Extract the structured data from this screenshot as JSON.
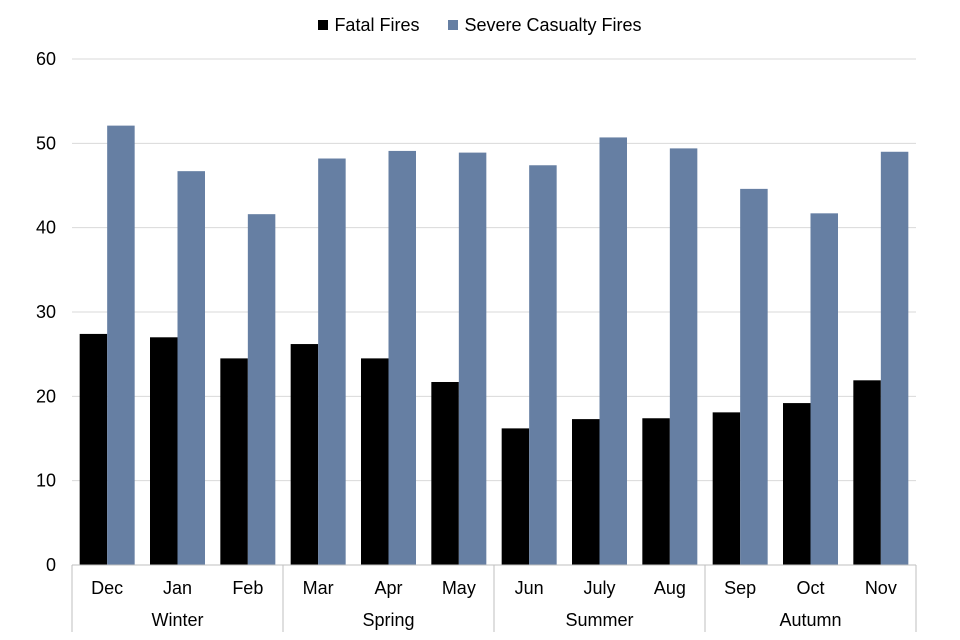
{
  "chart_data": {
    "type": "bar",
    "title": "",
    "xlabel": "",
    "ylabel": "",
    "ylim": [
      0,
      60
    ],
    "yticks": [
      0,
      10,
      20,
      30,
      40,
      50,
      60
    ],
    "grid": true,
    "legend_position": "top-center",
    "categories": [
      "Dec",
      "Jan",
      "Feb",
      "Mar",
      "Apr",
      "May",
      "Jun",
      "July",
      "Aug",
      "Sep",
      "Oct",
      "Nov"
    ],
    "groups": [
      {
        "label": "Winter",
        "categories": [
          "Dec",
          "Jan",
          "Feb"
        ]
      },
      {
        "label": "Spring",
        "categories": [
          "Mar",
          "Apr",
          "May"
        ]
      },
      {
        "label": "Summer",
        "categories": [
          "Jun",
          "July",
          "Aug"
        ]
      },
      {
        "label": "Autumn",
        "categories": [
          "Sep",
          "Oct",
          "Nov"
        ]
      }
    ],
    "series": [
      {
        "name": "Fatal Fires",
        "color": "#000000",
        "values": [
          27.4,
          27.0,
          24.5,
          26.2,
          24.5,
          21.7,
          16.2,
          17.3,
          17.4,
          18.1,
          19.2,
          21.9
        ]
      },
      {
        "name": "Severe Casualty Fires",
        "color": "#667fa3",
        "values": [
          52.1,
          46.7,
          41.6,
          48.2,
          49.1,
          48.9,
          47.4,
          50.7,
          49.4,
          44.6,
          41.7,
          49.0
        ]
      }
    ]
  }
}
